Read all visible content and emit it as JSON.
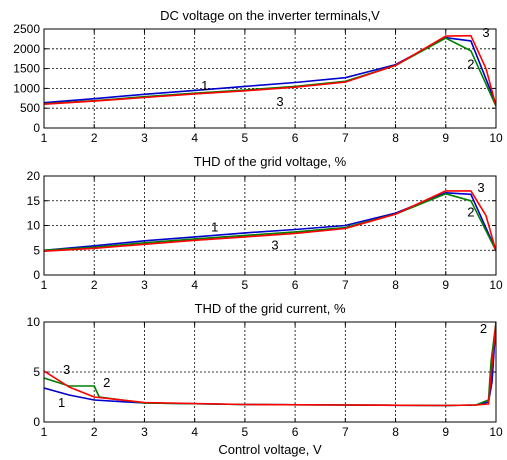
{
  "chart_data": [
    {
      "type": "line",
      "title": "DC voltage on the inverter terminals,V",
      "xlabel": "",
      "ylabel": "",
      "xlim": [
        1,
        10
      ],
      "ylim": [
        0,
        2500
      ],
      "xticks": [
        "1",
        "2",
        "3",
        "4",
        "5",
        "6",
        "7",
        "8",
        "9",
        "10"
      ],
      "yticks": [
        "0",
        "500",
        "1000",
        "1500",
        "2000",
        "2500"
      ],
      "grid": true,
      "series": [
        {
          "label": "1",
          "color": "#0000cc",
          "x": [
            1,
            2,
            3,
            4,
            5,
            6,
            7,
            8,
            9,
            9.5,
            10
          ],
          "y": [
            640,
            740,
            850,
            950,
            1050,
            1150,
            1270,
            1600,
            2280,
            2200,
            600
          ]
        },
        {
          "label": "2",
          "color": "#008000",
          "x": [
            1,
            2,
            3,
            4,
            5,
            6,
            7,
            8,
            9,
            9.5,
            10
          ],
          "y": [
            610,
            690,
            790,
            880,
            960,
            1050,
            1180,
            1580,
            2270,
            1950,
            550
          ]
        },
        {
          "label": "3",
          "color": "#ff0000",
          "x": [
            1,
            2,
            3,
            4,
            5,
            6,
            7,
            8,
            9,
            9.5,
            9.8,
            10
          ],
          "y": [
            600,
            680,
            770,
            860,
            940,
            1030,
            1160,
            1580,
            2320,
            2330,
            1500,
            560
          ]
        }
      ],
      "annotations": [
        {
          "text": "1",
          "x": 4.2,
          "y": 960
        },
        {
          "text": "3",
          "x": 5.7,
          "y": 560
        },
        {
          "text": "3",
          "x": 9.8,
          "y": 2300
        },
        {
          "text": "2",
          "x": 9.5,
          "y": 1500
        }
      ]
    },
    {
      "type": "line",
      "title": "THD of the grid voltage, %",
      "xlabel": "",
      "ylabel": "",
      "xlim": [
        1,
        10
      ],
      "ylim": [
        0,
        20
      ],
      "xticks": [
        "1",
        "2",
        "3",
        "4",
        "5",
        "6",
        "7",
        "8",
        "9",
        "10"
      ],
      "yticks": [
        "0",
        "5",
        "10",
        "15",
        "20"
      ],
      "grid": true,
      "series": [
        {
          "label": "1",
          "color": "#0000cc",
          "x": [
            1,
            2,
            3,
            4,
            5,
            6,
            7,
            8,
            9,
            9.5,
            10
          ],
          "y": [
            5.0,
            5.9,
            6.9,
            7.7,
            8.5,
            9.2,
            10.0,
            12.5,
            16.6,
            16.3,
            5.0
          ]
        },
        {
          "label": "2",
          "color": "#008000",
          "x": [
            1,
            2,
            3,
            4,
            5,
            6,
            7,
            8,
            9,
            9.5,
            10
          ],
          "y": [
            5.0,
            5.6,
            6.5,
            7.3,
            8.0,
            8.7,
            9.6,
            12.3,
            16.4,
            15.0,
            4.9
          ]
        },
        {
          "label": "3",
          "color": "#ff0000",
          "x": [
            1,
            2,
            3,
            4,
            5,
            6,
            7,
            8,
            9,
            9.5,
            9.8,
            10
          ],
          "y": [
            4.8,
            5.4,
            6.2,
            7.0,
            7.7,
            8.4,
            9.4,
            12.3,
            17.0,
            17.0,
            12.0,
            4.8
          ]
        }
      ],
      "annotations": [
        {
          "text": "1",
          "x": 4.4,
          "y": 8.8
        },
        {
          "text": "3",
          "x": 5.6,
          "y": 5.2
        },
        {
          "text": "3",
          "x": 9.7,
          "y": 16.8
        },
        {
          "text": "2",
          "x": 9.5,
          "y": 11.8
        }
      ]
    },
    {
      "type": "line",
      "title": "THD of the grid current, %",
      "xlabel": "Control voltage, V",
      "ylabel": "",
      "xlim": [
        1,
        10
      ],
      "ylim": [
        0,
        10
      ],
      "xticks": [
        "1",
        "2",
        "3",
        "4",
        "5",
        "6",
        "7",
        "8",
        "9",
        "10"
      ],
      "yticks": [
        "0",
        "5",
        "10"
      ],
      "grid": true,
      "series": [
        {
          "label": "1",
          "color": "#0000cc",
          "x": [
            1,
            1.5,
            2,
            3,
            5,
            7,
            9,
            9.6,
            9.85,
            9.92,
            10
          ],
          "y": [
            3.4,
            2.7,
            2.2,
            1.9,
            1.75,
            1.7,
            1.65,
            1.7,
            2.0,
            4.0,
            10
          ]
        },
        {
          "label": "2",
          "color": "#008000",
          "x": [
            1,
            1.5,
            2,
            2.1,
            3,
            5,
            7,
            9,
            9.6,
            9.85,
            9.9,
            10
          ],
          "y": [
            4.4,
            3.6,
            3.6,
            2.5,
            1.9,
            1.75,
            1.7,
            1.65,
            1.7,
            2.2,
            6.0,
            10
          ]
        },
        {
          "label": "3",
          "color": "#ff0000",
          "x": [
            1,
            1.5,
            2,
            3,
            5,
            7,
            9,
            9.6,
            9.85,
            9.88,
            10
          ],
          "y": [
            5.1,
            3.5,
            2.5,
            1.95,
            1.75,
            1.7,
            1.65,
            1.7,
            1.8,
            3.5,
            10
          ]
        }
      ],
      "annotations": [
        {
          "text": "1",
          "x": 1.35,
          "y": 1.5
        },
        {
          "text": "3",
          "x": 1.45,
          "y": 4.8
        },
        {
          "text": "2",
          "x": 2.25,
          "y": 3.5
        },
        {
          "text": "2",
          "x": 9.75,
          "y": 8.9
        }
      ]
    }
  ]
}
